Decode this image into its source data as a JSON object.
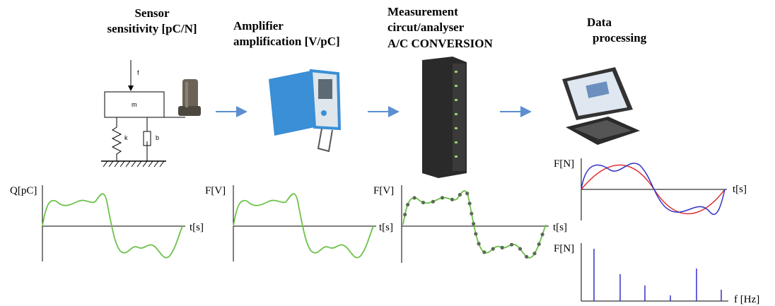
{
  "stages": [
    {
      "title": [
        "Sensor",
        "sensitivity [pC/N]"
      ]
    },
    {
      "title": [
        "Amplifier",
        "amplification [V/pC]"
      ]
    },
    {
      "title": [
        "Measurement",
        "circut/analyser",
        "A/C CONVERSION"
      ]
    },
    {
      "title": [
        "Data",
        "processing"
      ]
    }
  ],
  "mechanics": {
    "force": "f",
    "mass": "m",
    "spring": "k",
    "damper": "b"
  },
  "plots": [
    {
      "y_label": "Q[pC]",
      "x_label": "t[s]"
    },
    {
      "y_label": "F[V]",
      "x_label": "t[s]"
    },
    {
      "y_label": "F[V]",
      "x_label": "t[s]"
    },
    {
      "y_label": "F[N]",
      "x_label": "t[s]"
    },
    {
      "y_label": "F[N]",
      "x_label": "f [Hz]"
    }
  ]
}
